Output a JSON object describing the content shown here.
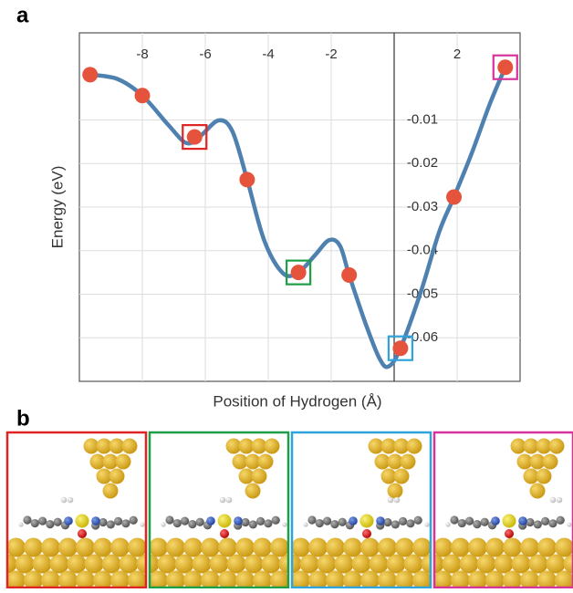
{
  "panel_labels": [
    "a",
    "b"
  ],
  "chart_data": {
    "type": "line",
    "xlabel": "Position of Hydrogen (Å)",
    "ylabel": "Energy (eV)",
    "xlim": [
      -10,
      4
    ],
    "ylim": [
      -0.07,
      0.01
    ],
    "xticks": [
      -8,
      -6,
      -4,
      -2,
      2
    ],
    "yticks": [
      -0.01,
      -0.02,
      -0.03,
      -0.04,
      -0.05,
      -0.06
    ],
    "grid": true,
    "curve": {
      "color": "#4f81b0",
      "x": [
        -9.66,
        -8.79,
        -8.0,
        -7.18,
        -6.6,
        -6.16,
        -5.58,
        -5.14,
        -4.67,
        -4.12,
        -3.53,
        -3.04,
        -2.51,
        -2.07,
        -1.72,
        -1.43,
        -0.91,
        -0.47,
        -0.18,
        0.2,
        0.85,
        1.43,
        1.9,
        2.45,
        3.04,
        3.53
      ],
      "values": [
        0.0004,
        -0.0006,
        -0.0044,
        -0.0111,
        -0.0153,
        -0.0137,
        -0.0101,
        -0.0126,
        -0.0237,
        -0.0378,
        -0.0452,
        -0.045,
        -0.041,
        -0.0376,
        -0.0389,
        -0.0456,
        -0.0567,
        -0.0647,
        -0.0666,
        -0.0624,
        -0.0494,
        -0.0357,
        -0.0277,
        -0.0179,
        -0.0063,
        0.0021
      ]
    },
    "points": {
      "color": "#e5533d",
      "x": [
        -9.66,
        -8.0,
        -6.34,
        -4.67,
        -3.04,
        -1.43,
        0.2,
        1.9,
        3.53
      ],
      "values": [
        0.0004,
        -0.0044,
        -0.0139,
        -0.0237,
        -0.045,
        -0.0456,
        -0.0624,
        -0.0277,
        0.0021
      ]
    },
    "highlights": [
      {
        "index": 2,
        "color": "#e02424"
      },
      {
        "index": 4,
        "color": "#1f9e4a"
      },
      {
        "index": 6,
        "color": "#2ea3dc"
      },
      {
        "index": 8,
        "color": "#d6349a"
      }
    ]
  }
}
